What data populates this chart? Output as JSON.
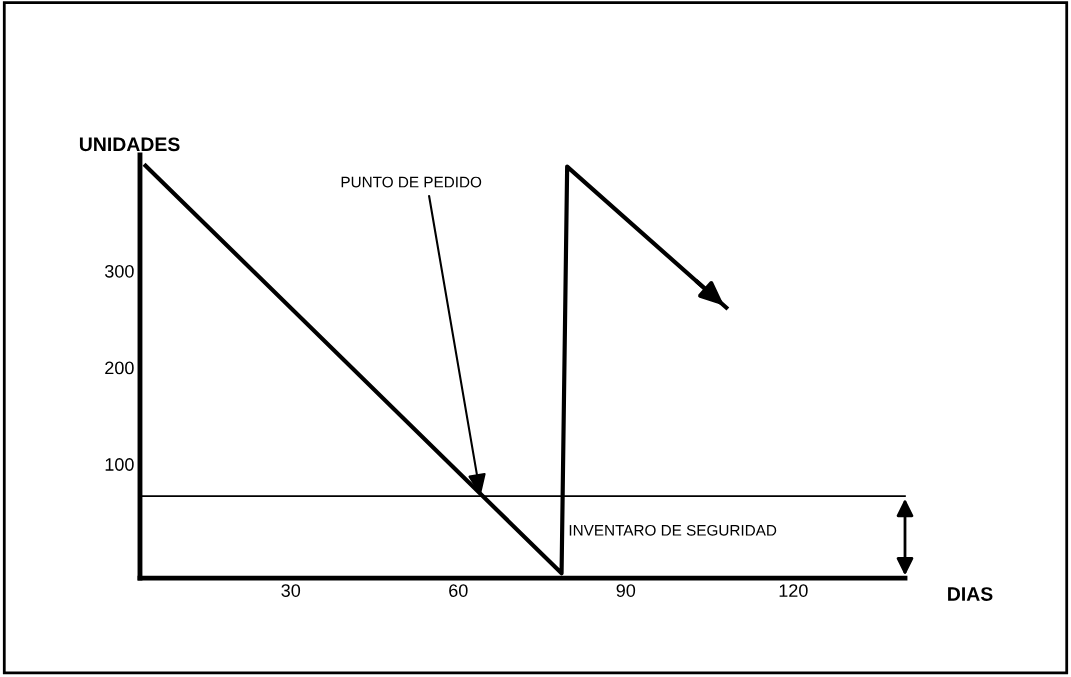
{
  "chart_data": {
    "type": "line",
    "xlabel": "DIAS",
    "ylabel": "UNIDADES",
    "x": [
      4,
      78.5,
      79.5,
      108
    ],
    "series": [
      {
        "color": "#000000",
        "values": [
          409,
          -13,
          408,
          262
        ]
      }
    ],
    "xlim": [
      3,
      140
    ],
    "ylim": [
      -18,
      420
    ],
    "xticks": [
      30,
      60,
      90,
      120
    ],
    "yticks": [
      100,
      200,
      300
    ],
    "ref_lines": [
      {
        "axis": "y",
        "value": 67,
        "color": "#000000"
      }
    ],
    "annotations": [
      {
        "text": "PUNTO DE PEDIDO",
        "x": 64,
        "y": 67
      },
      "INVENTARO DE SEGURIDAD"
    ],
    "grid": false,
    "marker": "none",
    "line_style": "solid"
  }
}
